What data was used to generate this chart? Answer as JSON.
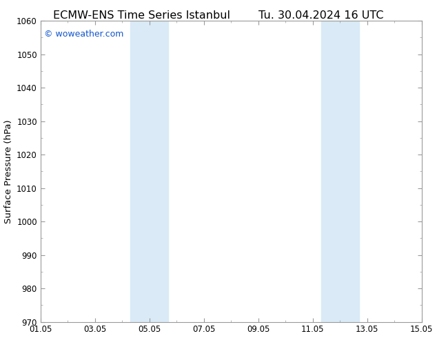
{
  "title": "ECMW-ENS Time Series Istanbul",
  "title2": "Tu. 30.04.2024 16 UTC",
  "ylabel": "Surface Pressure (hPa)",
  "ylim": [
    970,
    1060
  ],
  "yticks": [
    970,
    980,
    990,
    1000,
    1010,
    1020,
    1030,
    1040,
    1050,
    1060
  ],
  "xlim": [
    0,
    14
  ],
  "xtick_positions": [
    0,
    2,
    4,
    6,
    8,
    10,
    12,
    14
  ],
  "xtick_labels": [
    "01.05",
    "03.05",
    "05.05",
    "07.05",
    "09.05",
    "11.05",
    "13.05",
    "15.05"
  ],
  "shaded_bands": [
    {
      "xmin": 3.3,
      "xmax": 4.7
    },
    {
      "xmin": 10.3,
      "xmax": 11.7
    }
  ],
  "band_color": "#daeaf7",
  "watermark": "© woweather.com",
  "watermark_color": "#1155cc",
  "background_color": "#ffffff",
  "spine_color": "#999999",
  "title_fontsize": 11.5,
  "label_fontsize": 9.5,
  "tick_fontsize": 8.5,
  "figure_width": 6.34,
  "figure_height": 4.9,
  "dpi": 100
}
